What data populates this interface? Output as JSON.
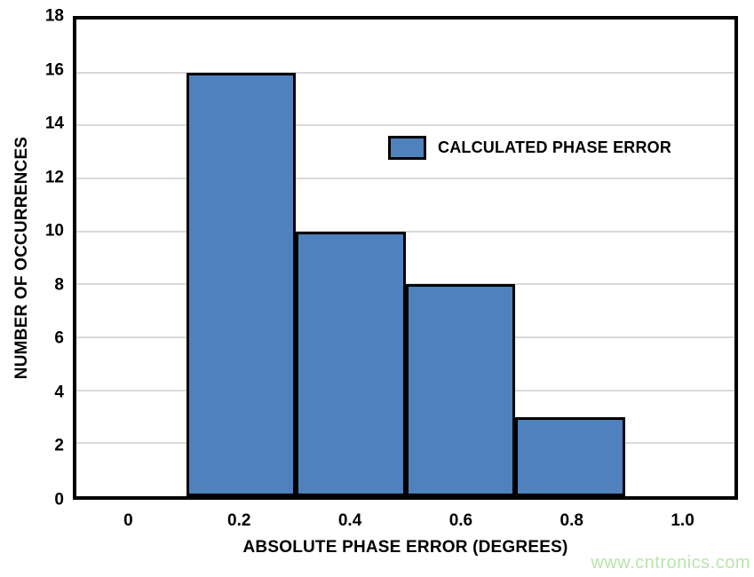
{
  "watermark": "www.cntronics.com",
  "chart_data": {
    "type": "bar",
    "title": "",
    "xlabel": "ABSOLUTE PHASE ERROR (DEGREES)",
    "ylabel": "NUMBER OF OCCURRENCES",
    "xlim": [
      -0.1,
      1.1
    ],
    "ylim": [
      0,
      18
    ],
    "grid": true,
    "grid_interval": 2,
    "x_tick_values": [
      0,
      0.2,
      0.4,
      0.6,
      0.8,
      1.0
    ],
    "x_tick_labels": [
      "0",
      "0.2",
      "0.4",
      "0.6",
      "0.8",
      "1.0"
    ],
    "y_tick_values": [
      0,
      2,
      4,
      6,
      8,
      10,
      12,
      14,
      16,
      18
    ],
    "y_tick_labels": [
      "0",
      "2",
      "4",
      "6",
      "8",
      "10",
      "12",
      "14",
      "16",
      "18"
    ],
    "legend": {
      "label": "CALCULATED PHASE ERROR",
      "position": "inside-upper-middle"
    },
    "series": [
      {
        "name": "CALCULATED PHASE ERROR",
        "bin_width": 0.2,
        "bars": [
          {
            "x_start": 0.1,
            "x_end": 0.3,
            "center": 0.2,
            "value": 16
          },
          {
            "x_start": 0.3,
            "x_end": 0.5,
            "center": 0.4,
            "value": 10
          },
          {
            "x_start": 0.5,
            "x_end": 0.7,
            "center": 0.6,
            "value": 8
          },
          {
            "x_start": 0.7,
            "x_end": 0.9,
            "center": 0.8,
            "value": 3
          }
        ]
      }
    ],
    "colors": {
      "bar_fill": "#4f81bd",
      "bar_border": "#000000",
      "grid_color": "#d9d9d9",
      "axis_color": "#000000",
      "text_color": "#000000",
      "watermark_color": "#b8e5ac",
      "background": "#ffffff"
    }
  }
}
